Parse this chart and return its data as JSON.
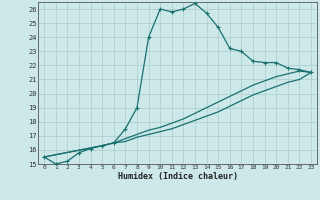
{
  "xlabel": "Humidex (Indice chaleur)",
  "bg_color": "#cce8e8",
  "grid_color": "#aacccc",
  "line_color": "#1a7070",
  "xlim": [
    -0.5,
    23.5
  ],
  "ylim": [
    15,
    26.5
  ],
  "xtick_vals": [
    0,
    1,
    2,
    3,
    4,
    5,
    6,
    7,
    8,
    9,
    10,
    11,
    12,
    13,
    14,
    15,
    16,
    17,
    18,
    19,
    20,
    21,
    22,
    23
  ],
  "ytick_vals": [
    15,
    16,
    17,
    18,
    19,
    20,
    21,
    22,
    23,
    24,
    25,
    26
  ],
  "curve1_x": [
    0,
    1,
    2,
    3,
    4,
    5,
    6,
    7,
    8,
    9,
    10,
    11,
    12,
    13,
    14,
    15,
    16,
    17,
    18,
    19,
    20,
    21,
    22,
    23
  ],
  "curve1_y": [
    15.5,
    15.0,
    15.2,
    15.8,
    16.1,
    16.3,
    16.5,
    17.5,
    19.0,
    24.0,
    26.0,
    25.8,
    26.0,
    26.4,
    25.7,
    24.7,
    23.2,
    23.0,
    22.3,
    22.2,
    22.2,
    21.8,
    21.7,
    21.5
  ],
  "curve2_x": [
    0,
    5,
    6,
    7,
    8,
    9,
    10,
    11,
    12,
    13,
    14,
    15,
    16,
    17,
    18,
    19,
    20,
    21,
    22,
    23
  ],
  "curve2_y": [
    15.5,
    16.3,
    16.5,
    16.8,
    17.1,
    17.4,
    17.6,
    17.9,
    18.2,
    18.6,
    19.0,
    19.4,
    19.8,
    20.2,
    20.6,
    20.9,
    21.2,
    21.4,
    21.6,
    21.5
  ],
  "curve3_x": [
    0,
    5,
    6,
    7,
    8,
    9,
    10,
    11,
    12,
    13,
    14,
    15,
    16,
    17,
    18,
    19,
    20,
    21,
    22,
    23
  ],
  "curve3_y": [
    15.5,
    16.3,
    16.5,
    16.6,
    16.9,
    17.1,
    17.3,
    17.5,
    17.8,
    18.1,
    18.4,
    18.7,
    19.1,
    19.5,
    19.9,
    20.2,
    20.5,
    20.8,
    21.0,
    21.5
  ],
  "marker_style": "+",
  "marker_size": 3.5,
  "linewidth": 0.9
}
